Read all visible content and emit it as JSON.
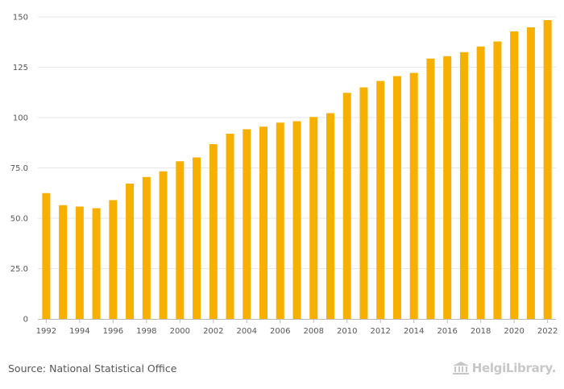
{
  "chart_data": {
    "type": "bar",
    "categories": [
      "1992",
      "1993",
      "1994",
      "1995",
      "1996",
      "1997",
      "1998",
      "1999",
      "2000",
      "2001",
      "2002",
      "2003",
      "2004",
      "2005",
      "2006",
      "2007",
      "2008",
      "2009",
      "2010",
      "2011",
      "2012",
      "2013",
      "2014",
      "2015",
      "2016",
      "2017",
      "2018",
      "2019",
      "2020",
      "2021",
      "2022"
    ],
    "values": [
      62.5,
      56.5,
      55.8,
      55.0,
      59.0,
      67.2,
      70.5,
      73.3,
      78.3,
      80.2,
      86.8,
      92.0,
      94.2,
      95.5,
      97.5,
      98.2,
      100.3,
      102.2,
      112.3,
      115.0,
      118.2,
      120.6,
      122.2,
      129.3,
      130.5,
      132.5,
      135.3,
      137.8,
      142.8,
      144.8,
      148.4
    ],
    "x_tick_labels": [
      "1992",
      "1994",
      "1996",
      "1998",
      "2000",
      "2002",
      "2004",
      "2006",
      "2008",
      "2010",
      "2012",
      "2014",
      "2016",
      "2018",
      "2020",
      "2022"
    ],
    "y_ticks": [
      0,
      25,
      50,
      75,
      100,
      125,
      150
    ],
    "y_tick_labels": [
      "0",
      "25.0",
      "50.0",
      "75.0",
      "100",
      "125",
      "150"
    ],
    "ylim": [
      0,
      150
    ],
    "grid": true,
    "bar_color": "#f7b000",
    "grid_color": "#e6e6e6",
    "axis_color": "#bbbbbb"
  },
  "footer": {
    "source": "Source: National Statistical Office",
    "logo_text": "HelgiLibrary."
  }
}
